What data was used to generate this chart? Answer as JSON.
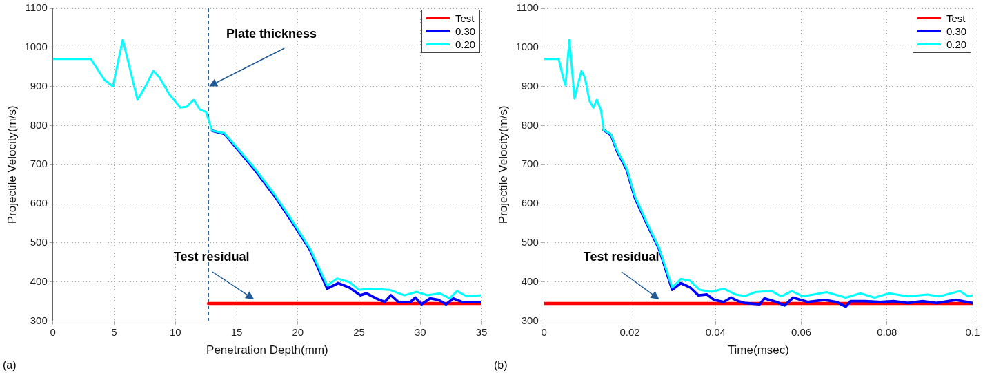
{
  "chart_data": [
    {
      "type": "line",
      "xlabel": "Penetration Depth(mm)",
      "ylabel": "Projectile Velocity(m/s)",
      "xlim": [
        0,
        35
      ],
      "xticks": [
        0,
        5,
        10,
        15,
        20,
        25,
        30,
        35
      ],
      "ylim": [
        300,
        1100
      ],
      "yticks": [
        300,
        400,
        500,
        600,
        700,
        800,
        900,
        1000,
        1100
      ],
      "grid": true,
      "legend": "top right",
      "marker": "none",
      "line_style": "solid",
      "annotations": [
        "Plate thickness",
        "Test residual",
        "(a)"
      ],
      "ref_lines": [
        {
          "axis": "x",
          "value": 12.7,
          "color": "#1f5a96",
          "line_style": "dashed"
        }
      ],
      "series": [
        {
          "name": "Test",
          "color": "#ff0000",
          "x": [
            12.7,
            35
          ],
          "values": [
            345,
            345
          ]
        },
        {
          "name": "0.30",
          "color": "#0000ff",
          "x": [
            13.0,
            14.0,
            15.2,
            16.5,
            18.1,
            19.5,
            21.0,
            22.4,
            23.3,
            24.2,
            25.1,
            25.6,
            26.4,
            27.1,
            27.6,
            28.2,
            29.2,
            29.6,
            30.1,
            30.8,
            31.5,
            32.1,
            32.7,
            33.4,
            34.4,
            35
          ],
          "values": [
            787,
            779,
            735,
            686,
            620,
            555,
            482,
            383,
            397,
            386,
            366,
            371,
            358,
            349,
            366,
            349,
            349,
            360,
            343,
            358,
            354,
            343,
            358,
            349,
            349,
            349
          ]
        },
        {
          "name": "0.20",
          "color": "#00ffff",
          "x": [
            0,
            3.1,
            4.2,
            4.9,
            5.7,
            6.9,
            7.5,
            8.2,
            8.7,
            9.5,
            10.4,
            10.9,
            11.5,
            12.0,
            12.5,
            13.0,
            14.0,
            15.2,
            16.5,
            18.1,
            19.5,
            21.0,
            22.4,
            23.2,
            24.2,
            25.0,
            25.9,
            27.5,
            28.7,
            29.7,
            30.6,
            31.6,
            32.4,
            33.0,
            33.8,
            35
          ],
          "values": [
            970,
            970,
            917,
            900,
            1020,
            866,
            897,
            940,
            923,
            880,
            846,
            848,
            866,
            841,
            835,
            787,
            781,
            738,
            690,
            624,
            559,
            485,
            391,
            409,
            400,
            380,
            383,
            380,
            366,
            375,
            366,
            371,
            358,
            377,
            363,
            366
          ]
        }
      ]
    },
    {
      "type": "line",
      "xlabel": "Time(msec)",
      "ylabel": "Projectile Velocity(m/s)",
      "xlim": [
        0,
        0.1
      ],
      "xticks": [
        0,
        0.02,
        0.04,
        0.06,
        0.08,
        0.1
      ],
      "ylim": [
        300,
        1100
      ],
      "yticks": [
        300,
        400,
        500,
        600,
        700,
        800,
        900,
        1000,
        1100
      ],
      "grid": true,
      "legend": "top right",
      "marker": "none",
      "line_style": "solid",
      "annotations": [
        "Test residual",
        "(b)"
      ],
      "series": [
        {
          "name": "Test",
          "color": "#ff0000",
          "x": [
            0,
            0.1
          ],
          "values": [
            345,
            345
          ]
        },
        {
          "name": "0.30",
          "color": "#0000ff",
          "x": [
            0.0139,
            0.0156,
            0.017,
            0.0193,
            0.0212,
            0.024,
            0.0268,
            0.0299,
            0.0319,
            0.0341,
            0.036,
            0.038,
            0.0397,
            0.0419,
            0.0436,
            0.0453,
            0.0469,
            0.0503,
            0.0514,
            0.0542,
            0.0561,
            0.0581,
            0.0615,
            0.0654,
            0.0682,
            0.0704,
            0.0715,
            0.0749,
            0.0783,
            0.0816,
            0.0849,
            0.0883,
            0.0916,
            0.0961,
            0.1
          ],
          "values": [
            789,
            776,
            735,
            686,
            615,
            548,
            485,
            380,
            397,
            386,
            366,
            368,
            354,
            349,
            360,
            351,
            346,
            343,
            358,
            349,
            340,
            360,
            349,
            354,
            349,
            337,
            351,
            351,
            349,
            351,
            346,
            351,
            346,
            354,
            346
          ]
        },
        {
          "name": "0.20",
          "color": "#00ffff",
          "x": [
            0,
            0.0034,
            0.0045,
            0.005,
            0.0059,
            0.0071,
            0.0087,
            0.0095,
            0.0106,
            0.0115,
            0.0123,
            0.0133,
            0.0139,
            0.0156,
            0.017,
            0.0193,
            0.0212,
            0.024,
            0.0268,
            0.0299,
            0.0319,
            0.0341,
            0.0363,
            0.0391,
            0.0419,
            0.0447,
            0.0469,
            0.0492,
            0.0531,
            0.0553,
            0.0578,
            0.0604,
            0.0659,
            0.0704,
            0.0738,
            0.0771,
            0.0805,
            0.0849,
            0.0894,
            0.0922,
            0.097,
            0.0989,
            0.1
          ],
          "values": [
            970,
            970,
            920,
            903,
            1020,
            869,
            940,
            923,
            863,
            846,
            866,
            838,
            789,
            778,
            738,
            690,
            619,
            551,
            488,
            386,
            408,
            403,
            380,
            375,
            383,
            368,
            364,
            374,
            377,
            363,
            377,
            363,
            374,
            360,
            371,
            360,
            371,
            363,
            368,
            363,
            377,
            363,
            366
          ]
        }
      ]
    }
  ]
}
